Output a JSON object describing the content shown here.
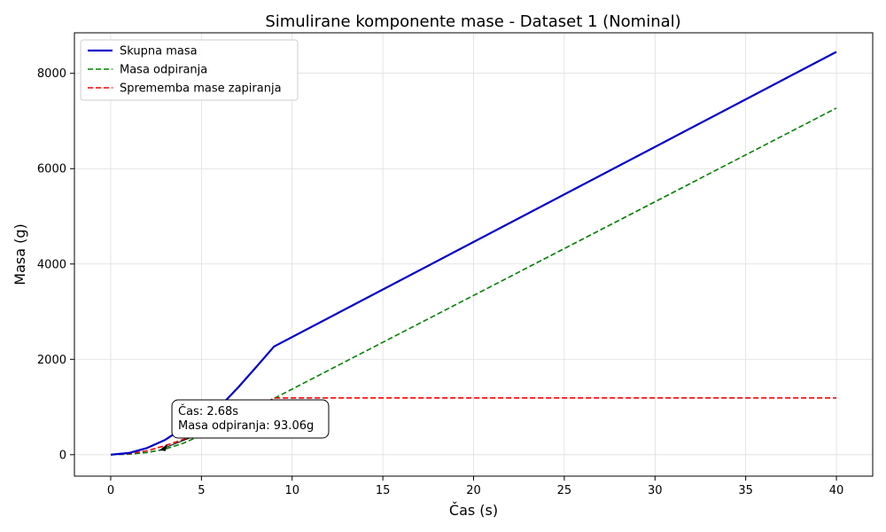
{
  "chart_data": {
    "type": "line",
    "title": "Simulirane komponente mase - Dataset 1 (Nominal)",
    "xlabel": "Čas (s)",
    "ylabel": "Masa (g)",
    "xlim": [
      -2,
      42
    ],
    "ylim": [
      -450,
      8850
    ],
    "xticks": [
      0,
      5,
      10,
      15,
      20,
      25,
      30,
      35,
      40
    ],
    "yticks": [
      0,
      2000,
      4000,
      6000,
      8000
    ],
    "grid": true,
    "legend_position": "top-left",
    "series": [
      {
        "name": "Skupna masa",
        "color": "#0000cc",
        "style": "solid",
        "x": [
          0,
          1,
          2,
          3,
          4,
          5,
          6,
          7,
          8,
          9,
          40
        ],
        "y": [
          0,
          35,
          140,
          310,
          560,
          850,
          1000,
          1400,
          1830,
          2270,
          8450
        ]
      },
      {
        "name": "Masa odpiranja",
        "color": "#008000",
        "style": "dashed",
        "x": [
          0,
          1,
          2,
          2.68,
          3,
          4,
          5,
          6,
          7,
          8,
          9,
          40
        ],
        "y": [
          0,
          10,
          45,
          93.06,
          120,
          240,
          410,
          600,
          800,
          1000,
          1180,
          7270
        ]
      },
      {
        "name": "Sprememba mase zapiranja",
        "color": "#ff0000",
        "style": "dashed",
        "x": [
          0,
          1,
          2,
          3,
          4,
          5,
          6,
          7,
          8,
          9,
          40
        ],
        "y": [
          0,
          20,
          80,
          190,
          320,
          450,
          600,
          750,
          950,
          1190,
          1190
        ]
      }
    ],
    "annotation": {
      "lines": [
        "Čas: 2.68s",
        "Masa odpiranja: 93.06g"
      ],
      "point": [
        2.68,
        93.06
      ]
    }
  }
}
